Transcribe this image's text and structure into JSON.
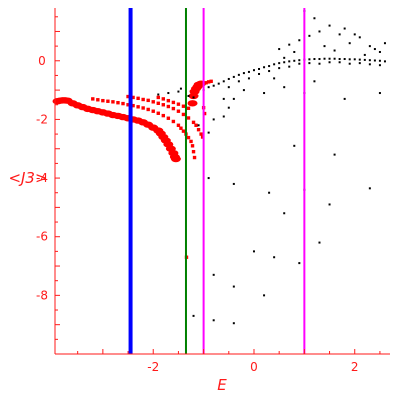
{
  "chart_data": {
    "type": "scatter",
    "xlabel": "E",
    "ylabel": "<J3>",
    "xlim": [
      -3.95,
      2.7
    ],
    "ylim": [
      -10,
      1.8
    ],
    "x_ticks": [
      {
        "value": -2,
        "label": "-2"
      },
      {
        "value": 0,
        "label": "0"
      },
      {
        "value": 2,
        "label": "2"
      }
    ],
    "y_ticks": [
      {
        "value": 0,
        "label": "0"
      },
      {
        "value": -2,
        "label": "-2"
      },
      {
        "value": -4,
        "label": "-4"
      },
      {
        "value": -6,
        "label": "-6"
      },
      {
        "value": -8,
        "label": "-8"
      }
    ],
    "vertical_lines": [
      {
        "x": -2.45,
        "color": "#0000ff",
        "width": 4
      },
      {
        "x": -1.35,
        "color": "#008000",
        "width": 2
      },
      {
        "x": -1.0,
        "color": "#ff00ff",
        "width": 2
      },
      {
        "x": 1.0,
        "color": "#ff00ff",
        "width": 2
      }
    ],
    "series": [
      {
        "color": "#ff0000",
        "marker": "large",
        "points": [
          [
            -3.9,
            -1.38
          ],
          [
            -3.85,
            -1.36
          ],
          [
            -3.8,
            -1.35
          ],
          [
            -3.75,
            -1.35
          ],
          [
            -3.7,
            -1.36
          ],
          [
            -3.6,
            -1.45
          ],
          [
            -3.5,
            -1.52
          ],
          [
            -3.4,
            -1.58
          ],
          [
            -3.3,
            -1.64
          ],
          [
            -3.2,
            -1.68
          ],
          [
            -3.1,
            -1.72
          ],
          [
            -3.0,
            -1.76
          ],
          [
            -2.9,
            -1.8
          ],
          [
            -2.8,
            -1.85
          ],
          [
            -2.7,
            -1.88
          ],
          [
            -2.6,
            -1.92
          ],
          [
            -2.5,
            -1.96
          ],
          [
            -2.4,
            -2.0
          ],
          [
            -2.3,
            -2.04
          ],
          [
            -2.2,
            -2.1
          ],
          [
            -2.1,
            -2.18
          ],
          [
            -2.0,
            -2.28
          ],
          [
            -1.9,
            -2.38
          ],
          [
            -1.85,
            -2.48
          ],
          [
            -1.8,
            -2.6
          ],
          [
            -1.75,
            -2.72
          ],
          [
            -1.7,
            -2.85
          ],
          [
            -1.65,
            -3.0
          ],
          [
            -1.6,
            -3.15
          ],
          [
            -1.57,
            -3.28
          ],
          [
            -1.55,
            -3.35
          ],
          [
            -1.22,
            -1.45
          ],
          [
            -1.2,
            -1.2
          ],
          [
            -1.18,
            -1.05
          ],
          [
            -1.15,
            -0.95
          ],
          [
            -1.12,
            -0.88
          ],
          [
            -1.1,
            -0.82
          ],
          [
            -1.05,
            -0.78
          ]
        ]
      },
      {
        "color": "#ff0000",
        "marker": "small",
        "points": [
          [
            -3.2,
            -1.3
          ],
          [
            -3.1,
            -1.33
          ],
          [
            -3.0,
            -1.36
          ],
          [
            -2.9,
            -1.38
          ],
          [
            -2.8,
            -1.4
          ],
          [
            -2.7,
            -1.43
          ],
          [
            -2.6,
            -1.46
          ],
          [
            -2.5,
            -1.5
          ],
          [
            -2.4,
            -1.53
          ],
          [
            -2.3,
            -1.57
          ],
          [
            -2.2,
            -1.61
          ],
          [
            -2.1,
            -1.66
          ],
          [
            -2.0,
            -1.72
          ],
          [
            -1.9,
            -1.79
          ],
          [
            -1.8,
            -1.87
          ],
          [
            -1.7,
            -1.96
          ],
          [
            -1.6,
            -2.07
          ],
          [
            -1.5,
            -2.2
          ],
          [
            -1.45,
            -2.3
          ],
          [
            -1.4,
            -2.4
          ],
          [
            -1.35,
            -2.5
          ],
          [
            -1.3,
            -2.62
          ],
          [
            -1.25,
            -2.75
          ],
          [
            -1.22,
            -2.9
          ],
          [
            -1.2,
            -3.1
          ],
          [
            -1.18,
            -3.3
          ],
          [
            -2.5,
            -1.22
          ],
          [
            -2.4,
            -1.25
          ],
          [
            -2.3,
            -1.28
          ],
          [
            -2.2,
            -1.32
          ],
          [
            -2.1,
            -1.35
          ],
          [
            -2.0,
            -1.4
          ],
          [
            -1.9,
            -1.45
          ],
          [
            -1.8,
            -1.5
          ],
          [
            -1.7,
            -1.56
          ],
          [
            -1.6,
            -1.63
          ],
          [
            -1.5,
            -1.72
          ],
          [
            -1.4,
            -1.83
          ],
          [
            -1.3,
            -1.95
          ],
          [
            -1.2,
            -2.1
          ],
          [
            -1.15,
            -2.2
          ],
          [
            -1.1,
            -2.35
          ],
          [
            -1.05,
            -2.5
          ],
          [
            -1.02,
            -2.6
          ],
          [
            -1.9,
            -1.25
          ],
          [
            -1.8,
            -1.3
          ],
          [
            -1.7,
            -1.36
          ],
          [
            -1.6,
            -1.42
          ],
          [
            -1.5,
            -1.48
          ],
          [
            -1.4,
            -1.55
          ],
          [
            -1.3,
            -1.62
          ],
          [
            -0.95,
            -0.75
          ],
          [
            -0.9,
            -0.72
          ],
          [
            -0.85,
            -0.7
          ],
          [
            -1.0,
            -1.6
          ],
          [
            -0.98,
            -1.8
          ],
          [
            -1.34,
            -6.7
          ]
        ]
      },
      {
        "color": "#000000",
        "marker": "dot",
        "points": [
          [
            -1.9,
            -1.15
          ],
          [
            -1.7,
            -1.1
          ],
          [
            -1.5,
            -1.05
          ],
          [
            -1.45,
            -0.95
          ],
          [
            -1.3,
            -1.2
          ],
          [
            -1.2,
            -1.25
          ],
          [
            -1.0,
            -1.0
          ],
          [
            -0.9,
            -0.9
          ],
          [
            -0.8,
            -0.85
          ],
          [
            -0.7,
            -0.78
          ],
          [
            -0.6,
            -0.7
          ],
          [
            -0.5,
            -0.62
          ],
          [
            -0.4,
            -0.55
          ],
          [
            -0.3,
            -0.48
          ],
          [
            -0.2,
            -0.42
          ],
          [
            -0.1,
            -0.38
          ],
          [
            0.0,
            -0.32
          ],
          [
            0.1,
            -0.28
          ],
          [
            0.2,
            -0.22
          ],
          [
            0.3,
            -0.18
          ],
          [
            0.4,
            -0.12
          ],
          [
            0.5,
            -0.08
          ],
          [
            0.6,
            -0.05
          ],
          [
            0.7,
            -0.02
          ],
          [
            0.8,
            0.0
          ],
          [
            0.9,
            0.02
          ],
          [
            1.0,
            0.04
          ],
          [
            1.1,
            0.05
          ],
          [
            1.2,
            0.06
          ],
          [
            1.3,
            0.06
          ],
          [
            1.4,
            0.07
          ],
          [
            1.5,
            0.07
          ],
          [
            1.6,
            0.07
          ],
          [
            1.7,
            0.06
          ],
          [
            1.8,
            0.06
          ],
          [
            1.9,
            0.05
          ],
          [
            2.0,
            0.05
          ],
          [
            2.1,
            0.04
          ],
          [
            2.2,
            0.03
          ],
          [
            2.3,
            0.02
          ],
          [
            2.4,
            0.01
          ],
          [
            2.5,
            0.0
          ],
          [
            2.6,
            -0.02
          ],
          [
            -0.5,
            -0.9
          ],
          [
            -0.3,
            -0.7
          ],
          [
            -0.1,
            -0.6
          ],
          [
            0.1,
            -0.45
          ],
          [
            0.3,
            -0.35
          ],
          [
            0.5,
            -0.25
          ],
          [
            0.7,
            -0.2
          ],
          [
            0.9,
            -0.1
          ],
          [
            1.1,
            -0.08
          ],
          [
            1.3,
            -0.1
          ],
          [
            1.5,
            -0.05
          ],
          [
            1.7,
            -0.05
          ],
          [
            1.9,
            -0.1
          ],
          [
            2.1,
            -0.08
          ],
          [
            2.3,
            -0.12
          ],
          [
            2.5,
            -0.15
          ],
          [
            0.5,
            0.4
          ],
          [
            0.7,
            0.55
          ],
          [
            0.9,
            0.7
          ],
          [
            1.1,
            0.85
          ],
          [
            1.3,
            1.0
          ],
          [
            1.5,
            1.2
          ],
          [
            1.7,
            0.9
          ],
          [
            1.9,
            0.6
          ],
          [
            2.1,
            0.8
          ],
          [
            2.3,
            0.5
          ],
          [
            2.5,
            0.3
          ],
          [
            1.2,
            1.45
          ],
          [
            1.4,
            0.5
          ],
          [
            1.6,
            0.35
          ],
          [
            1.8,
            1.1
          ],
          [
            2.0,
            0.9
          ],
          [
            2.2,
            0.2
          ],
          [
            0.8,
            0.3
          ],
          [
            0.6,
            0.1
          ],
          [
            1.0,
            1.7
          ],
          [
            2.4,
            0.4
          ],
          [
            2.6,
            0.6
          ],
          [
            -0.2,
            -1.0
          ],
          [
            0.2,
            -1.1
          ],
          [
            0.6,
            -0.9
          ],
          [
            1.2,
            -0.7
          ],
          [
            1.8,
            -1.3
          ],
          [
            2.5,
            -1.1
          ],
          [
            0.4,
            -0.6
          ],
          [
            -0.6,
            -1.3
          ],
          [
            -1.1,
            -2.2
          ],
          [
            -0.9,
            -2.45
          ],
          [
            -0.8,
            -2.0
          ],
          [
            -0.6,
            -1.9
          ],
          [
            -0.5,
            -1.6
          ],
          [
            -0.4,
            -1.3
          ],
          [
            0.8,
            -2.9
          ],
          [
            1.6,
            -3.2
          ],
          [
            0.3,
            -4.5
          ],
          [
            1.0,
            -4.4
          ],
          [
            1.5,
            -4.9
          ],
          [
            2.3,
            -4.35
          ],
          [
            0.6,
            -5.2
          ],
          [
            1.3,
            -6.2
          ],
          [
            -0.4,
            -4.2
          ],
          [
            -0.9,
            -4.0
          ],
          [
            0.0,
            -6.5
          ],
          [
            0.4,
            -6.7
          ],
          [
            0.9,
            -6.9
          ],
          [
            -0.8,
            -7.3
          ],
          [
            -0.4,
            -7.7
          ],
          [
            0.2,
            -8.0
          ],
          [
            -1.2,
            -8.7
          ],
          [
            -0.8,
            -8.85
          ],
          [
            -0.4,
            -8.95
          ],
          [
            1.0,
            -1.1
          ]
        ]
      }
    ]
  }
}
